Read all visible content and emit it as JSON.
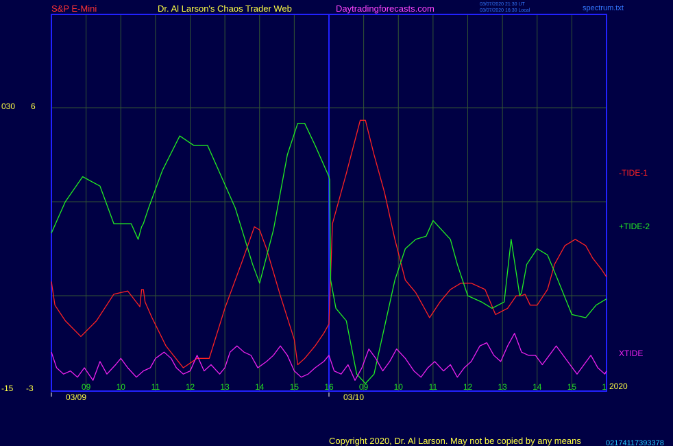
{
  "header": {
    "symbol": "S&P E-Mini",
    "site_title": "Dr. Al Larson's Chaos Trader Web",
    "site_url": "Daytradingforecasts.com",
    "timestamp_line1": "03/07/2020 21:30 UT",
    "timestamp_line2": "03/07/2020 16:30 Local",
    "file_name": "spectrum.txt"
  },
  "footer": {
    "copyright": "Copyright 2020, Dr. Al Larson. May not be copied by any means",
    "overlap_digits": "02174117393378"
  },
  "colors": {
    "background": "#000044",
    "frame": "#2222ff",
    "grid": "#335533",
    "tide1": "#ff2222",
    "tide2": "#22ee22",
    "xtide": "#ee22ee",
    "hour_labels": "#22dd22",
    "axis_text": "#ffff44",
    "date_labels": "#ffff44"
  },
  "chart_data": {
    "type": "line",
    "title": "S&P E-Mini",
    "xlabel": "",
    "ylabel": "",
    "left_axis_labels": {
      "top_outer": "030",
      "top_inner": "6",
      "bottom_outer": "-15",
      "bottom_inner": "-3"
    },
    "hour_ticks": [
      "09",
      "10",
      "11",
      "12",
      "13",
      "14",
      "15",
      "16",
      "09",
      "10",
      "11",
      "12",
      "13",
      "14",
      "15",
      "1"
    ],
    "session_dates": [
      "03/09",
      "03/10"
    ],
    "year_label": "2020",
    "x_range": [
      8,
      24
    ],
    "y_range": [
      -3,
      6
    ],
    "grid": true,
    "series": [
      {
        "name": "-TIDE-1",
        "color": "#ff2222",
        "x": [
          8.0,
          8.1,
          8.4,
          8.85,
          9.3,
          9.8,
          10.2,
          10.55,
          10.6,
          10.65,
          10.7,
          10.9,
          11.3,
          11.8,
          12.2,
          12.55,
          13.0,
          13.5,
          13.85,
          14.0,
          14.2,
          14.6,
          15.0,
          15.1,
          15.3,
          15.6,
          15.85,
          16.0,
          16.1,
          16.5,
          16.9,
          17.05,
          17.3,
          17.6,
          17.9,
          18.2,
          18.5,
          18.8,
          18.9,
          19.2,
          19.5,
          19.8,
          20.1,
          20.5,
          20.8,
          21.15,
          21.4,
          21.55,
          21.65,
          21.8,
          22.0,
          22.3,
          22.5,
          22.8,
          23.1,
          23.4,
          23.6,
          23.85,
          24.0
        ],
        "y": [
          0.45,
          -0.3,
          -0.8,
          -1.3,
          -0.8,
          0.05,
          0.15,
          -0.35,
          0.2,
          0.2,
          -0.2,
          -0.7,
          -1.6,
          -2.3,
          -2.0,
          -2.0,
          -0.4,
          1.1,
          2.2,
          2.1,
          1.5,
          0.0,
          -1.4,
          -2.2,
          -2.0,
          -1.6,
          -1.2,
          -0.9,
          2.3,
          3.9,
          5.6,
          5.6,
          4.5,
          3.3,
          1.8,
          0.5,
          0.1,
          -0.5,
          -0.7,
          -0.2,
          0.2,
          0.4,
          0.4,
          0.2,
          -0.6,
          -0.4,
          0.0,
          0.0,
          0.05,
          -0.3,
          -0.3,
          0.2,
          1.0,
          1.6,
          1.8,
          1.6,
          1.2,
          0.85,
          0.6
        ]
      },
      {
        "name": "+TIDE-2",
        "color": "#22ee22",
        "x": [
          8.0,
          8.4,
          8.9,
          9.4,
          9.8,
          10.3,
          10.5,
          10.6,
          10.65,
          10.8,
          11.2,
          11.7,
          12.1,
          12.5,
          12.9,
          13.3,
          13.8,
          14.0,
          14.4,
          14.8,
          15.1,
          15.3,
          15.6,
          16.0,
          16.02,
          16.05,
          16.2,
          16.5,
          16.8,
          17.05,
          17.3,
          17.6,
          17.9,
          18.2,
          18.5,
          18.8,
          19.0,
          19.5,
          19.7,
          20.0,
          20.4,
          20.7,
          21.05,
          21.25,
          21.5,
          21.55,
          21.7,
          22.0,
          22.3,
          22.6,
          23.0,
          23.4,
          23.7,
          24.0
        ],
        "y": [
          2.0,
          3.0,
          3.8,
          3.5,
          2.3,
          2.3,
          1.8,
          2.2,
          2.3,
          2.8,
          4.0,
          5.1,
          4.8,
          4.8,
          3.8,
          2.8,
          1.0,
          0.4,
          2.1,
          4.5,
          5.5,
          5.5,
          4.8,
          3.8,
          3.7,
          0.5,
          -0.4,
          -0.8,
          -2.5,
          -2.8,
          -2.5,
          -1.0,
          0.5,
          1.5,
          1.8,
          1.9,
          2.4,
          1.8,
          1.0,
          0.0,
          -0.2,
          -0.4,
          -0.2,
          1.8,
          0.0,
          0.1,
          1.0,
          1.5,
          1.3,
          0.5,
          -0.6,
          -0.7,
          -0.3,
          -0.1
        ]
      },
      {
        "name": "XTIDE",
        "color": "#ee22ee",
        "x": [
          8.0,
          8.15,
          8.35,
          8.55,
          8.75,
          8.95,
          9.2,
          9.4,
          9.6,
          9.85,
          10.0,
          10.2,
          10.45,
          10.65,
          10.85,
          11.0,
          11.25,
          11.45,
          11.6,
          11.8,
          12.0,
          12.2,
          12.4,
          12.6,
          12.85,
          13.0,
          13.15,
          13.35,
          13.55,
          13.75,
          13.95,
          14.2,
          14.4,
          14.6,
          14.8,
          15.0,
          15.2,
          15.4,
          15.6,
          15.85,
          16.0,
          16.15,
          16.35,
          16.55,
          16.75,
          16.95,
          17.15,
          17.35,
          17.55,
          17.75,
          17.95,
          18.2,
          18.45,
          18.65,
          18.85,
          19.05,
          19.3,
          19.5,
          19.7,
          19.9,
          20.1,
          20.35,
          20.55,
          20.75,
          20.95,
          21.15,
          21.35,
          21.55,
          21.75,
          21.95,
          22.15,
          22.35,
          22.55,
          22.75,
          22.95,
          23.15,
          23.35,
          23.55,
          23.75,
          23.95,
          24.0
        ],
        "y": [
          -1.8,
          -2.3,
          -2.5,
          -2.4,
          -2.6,
          -2.3,
          -2.7,
          -2.1,
          -2.5,
          -2.2,
          -2.0,
          -2.3,
          -2.6,
          -2.4,
          -2.3,
          -2.0,
          -1.8,
          -2.0,
          -2.3,
          -2.5,
          -2.4,
          -1.9,
          -2.4,
          -2.2,
          -2.5,
          -2.3,
          -1.8,
          -1.6,
          -1.8,
          -1.9,
          -2.3,
          -2.1,
          -1.9,
          -1.6,
          -1.9,
          -2.4,
          -2.6,
          -2.5,
          -2.3,
          -2.1,
          -1.9,
          -2.4,
          -2.5,
          -2.2,
          -2.7,
          -2.3,
          -1.7,
          -2.0,
          -2.4,
          -2.1,
          -1.7,
          -2.0,
          -2.4,
          -2.6,
          -2.3,
          -2.1,
          -2.4,
          -2.2,
          -2.6,
          -2.3,
          -2.1,
          -1.6,
          -1.5,
          -1.9,
          -2.1,
          -1.6,
          -1.2,
          -1.8,
          -1.9,
          -1.9,
          -2.2,
          -1.9,
          -1.6,
          -1.9,
          -2.2,
          -2.5,
          -2.2,
          -1.9,
          -2.3,
          -2.5,
          -2.4
        ]
      }
    ],
    "series_labels": [
      "-TIDE-1",
      "+TIDE-2",
      "XTIDE"
    ]
  }
}
